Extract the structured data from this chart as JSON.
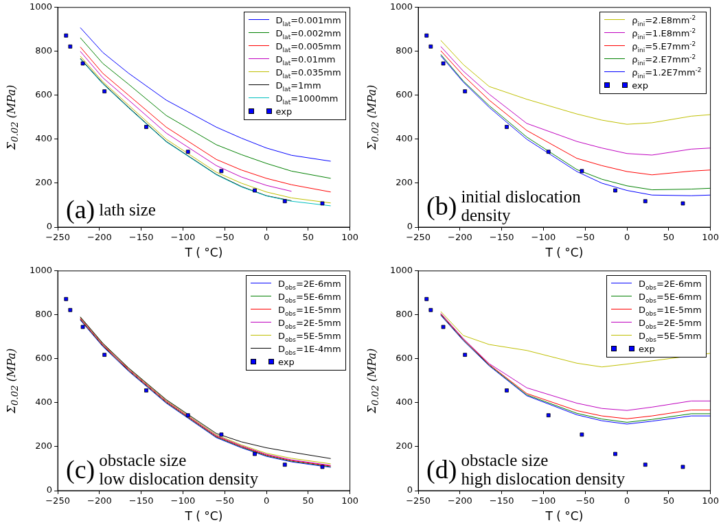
{
  "chart_data": [
    {
      "type": "line",
      "xlabel": "T ( °C)",
      "ylabel": "Σ$_{0.02}$ (MPa)",
      "xlim": [
        -250,
        100
      ],
      "ylim": [
        0,
        1000
      ],
      "xticks": [
        {
          "value": -250,
          "label": "−250"
        },
        {
          "value": -200,
          "label": "−200"
        },
        {
          "value": -150,
          "label": "−150"
        },
        {
          "value": -100,
          "label": "−100"
        },
        {
          "value": -50,
          "label": "−50"
        },
        0,
        50,
        100
      ],
      "yticks": [
        0,
        200,
        400,
        600,
        800,
        1000
      ],
      "legend": "top right",
      "annotations": [
        "(a)",
        "lath size"
      ],
      "x": [
        -223,
        -196,
        -165,
        -120,
        -60,
        -30,
        0,
        30,
        77
      ],
      "series": [
        {
          "name": "D$_{lat}$=0.001mm",
          "color": "#0000ff",
          "values": [
            908,
            795,
            700,
            578,
            455,
            405,
            360,
            327,
            300
          ]
        },
        {
          "name": "D$_{lat}$=0.002mm",
          "color": "#008000",
          "values": [
            862,
            745,
            650,
            508,
            375,
            330,
            290,
            255,
            222
          ]
        },
        {
          "name": "D$_{lat}$=0.005mm",
          "color": "#ff0000",
          "values": [
            820,
            700,
            600,
            455,
            308,
            260,
            222,
            193,
            160
          ]
        },
        {
          "name": "D$_{lat}$=0.01mm",
          "color": "#bf00bf",
          "x": [
            -223,
            -196,
            -165,
            -120,
            -60,
            -30,
            0,
            30
          ],
          "values": [
            800,
            680,
            578,
            428,
            280,
            228,
            190,
            163
          ]
        },
        {
          "name": "D$_{lat}$=0.035mm",
          "color": "#bfbf00",
          "values": [
            778,
            662,
            555,
            400,
            250,
            200,
            160,
            133,
            110
          ]
        },
        {
          "name": "D$_{lat}$=1mm",
          "color": "#000000",
          "values": [
            768,
            655,
            545,
            390,
            240,
            185,
            143,
            120,
            null
          ]
        },
        {
          "name": "D$_{lat}$=1000mm",
          "color": "#00bfbf",
          "values": [
            765,
            652,
            542,
            388,
            238,
            183,
            142,
            118,
            97
          ]
        },
        {
          "name": "exp",
          "type": "scatter",
          "marker": "square",
          "color": "#0000ff",
          "x": [
            -240,
            -235,
            -220,
            -194,
            -144,
            -94,
            -54,
            -14,
            22,
            67
          ],
          "values": [
            872,
            822,
            745,
            618,
            456,
            343,
            255,
            167,
            118,
            108
          ]
        }
      ]
    },
    {
      "type": "line",
      "xlabel": "T ( °C)",
      "ylabel": "Σ$_{0.02}$ (MPa)",
      "xlim": [
        -250,
        100
      ],
      "ylim": [
        0,
        1000
      ],
      "xticks": [
        {
          "value": -250,
          "label": "−250"
        },
        {
          "value": -200,
          "label": "−200"
        },
        {
          "value": -150,
          "label": "−150"
        },
        {
          "value": -100,
          "label": "−100"
        },
        {
          "value": -50,
          "label": "−50"
        },
        0,
        50,
        100
      ],
      "yticks": [
        0,
        200,
        400,
        600,
        800,
        1000
      ],
      "legend": "top right",
      "annotations": [
        "(b)",
        "initial dislocation\ndensity"
      ],
      "x": [
        -223,
        -196,
        -165,
        -120,
        -60,
        -30,
        0,
        30,
        77,
        100
      ],
      "series": [
        {
          "name": "ρ$_{ini}$=2.E8mm$^{-2}$",
          "color": "#bfbf00",
          "values": [
            850,
            740,
            640,
            582,
            515,
            487,
            468,
            475,
            505,
            512
          ]
        },
        {
          "name": "ρ$_{ini}$=1.E8mm$^{-2}$",
          "color": "#bf00bf",
          "values": [
            822,
            710,
            605,
            472,
            390,
            360,
            335,
            328,
            355,
            360
          ]
        },
        {
          "name": "ρ$_{ini}$=5.E7mm$^{-2}$",
          "color": "#ff0000",
          "values": [
            803,
            690,
            578,
            440,
            313,
            280,
            253,
            238,
            255,
            260
          ]
        },
        {
          "name": "ρ$_{ini}$=2.E7mm$^{-2}$",
          "color": "#008000",
          "values": [
            786,
            665,
            553,
            410,
            262,
            218,
            188,
            170,
            173,
            177
          ]
        },
        {
          "name": "ρ$_{ini}$=1.2E7mm$^{-2}$",
          "color": "#0000ff",
          "values": [
            780,
            660,
            545,
            400,
            253,
            200,
            167,
            146,
            143,
            146
          ]
        },
        {
          "name": "exp",
          "type": "scatter",
          "marker": "square",
          "color": "#0000ff",
          "x": [
            -240,
            -235,
            -220,
            -194,
            -144,
            -94,
            -54,
            -14,
            22,
            67
          ],
          "values": [
            872,
            822,
            745,
            618,
            456,
            343,
            255,
            167,
            118,
            108
          ]
        }
      ]
    },
    {
      "type": "line",
      "xlabel": "T ( °C)",
      "ylabel": "Σ$_{0.02}$ (MPa)",
      "xlim": [
        -250,
        100
      ],
      "ylim": [
        0,
        1000
      ],
      "xticks": [
        {
          "value": -250,
          "label": "−250"
        },
        {
          "value": -200,
          "label": "−200"
        },
        {
          "value": -150,
          "label": "−150"
        },
        {
          "value": -100,
          "label": "−100"
        },
        {
          "value": -50,
          "label": "−50"
        },
        0,
        50,
        100
      ],
      "yticks": [
        0,
        200,
        400,
        600,
        800,
        1000
      ],
      "legend": "top right",
      "annotations": [
        "(c)",
        "obstacle size\nlow dislocation density"
      ],
      "x": [
        -223,
        -196,
        -165,
        -120,
        -60,
        -30,
        0,
        30,
        77
      ],
      "series": [
        {
          "name": "D$_{obs}$=2E-6mm",
          "color": "#0000ff",
          "values": [
            776,
            656,
            543,
            398,
            241,
            195,
            156,
            131,
            106
          ]
        },
        {
          "name": "D$_{obs}$=5E-6mm",
          "color": "#008000",
          "values": [
            779,
            659,
            546,
            401,
            244,
            198,
            159,
            134,
            109
          ]
        },
        {
          "name": "D$_{obs}$=1E-5mm",
          "color": "#ff0000",
          "values": [
            782,
            662,
            549,
            404,
            247,
            201,
            162,
            137,
            112
          ]
        },
        {
          "name": "D$_{obs}$=2E-5mm",
          "color": "#bf00bf",
          "values": [
            785,
            665,
            552,
            407,
            250,
            204,
            165,
            140,
            115
          ]
        },
        {
          "name": "D$_{obs}$=5E-5mm",
          "color": "#bfbf00",
          "values": [
            788,
            668,
            555,
            410,
            254,
            208,
            170,
            147,
            122
          ]
        },
        {
          "name": "D$_{obs}$=1E-4mm",
          "color": "#000000",
          "values": [
            791,
            671,
            558,
            414,
            260,
            222,
            195,
            175,
            146
          ]
        },
        {
          "name": "exp",
          "type": "scatter",
          "marker": "square",
          "color": "#0000ff",
          "x": [
            -240,
            -235,
            -220,
            -194,
            -144,
            -94,
            -54,
            -14,
            22,
            67
          ],
          "values": [
            872,
            822,
            745,
            618,
            456,
            343,
            255,
            167,
            118,
            108
          ]
        }
      ]
    },
    {
      "type": "line",
      "xlabel": "T ( °C)",
      "ylabel": "Σ$_{0.02}$ (MPa)",
      "xlim": [
        -250,
        100
      ],
      "ylim": [
        0,
        1000
      ],
      "xticks": [
        {
          "value": -250,
          "label": "−250"
        },
        {
          "value": -200,
          "label": "−200"
        },
        {
          "value": -150,
          "label": "−150"
        },
        {
          "value": -100,
          "label": "−100"
        },
        {
          "value": -50,
          "label": "−50"
        },
        0,
        50,
        100
      ],
      "yticks": [
        0,
        200,
        400,
        600,
        800,
        1000
      ],
      "legend": "top right",
      "annotations": [
        "(d)",
        "obstacle size\nhigh dislocation density"
      ],
      "x": [
        -223,
        -196,
        -165,
        -120,
        -60,
        -30,
        0,
        30,
        77,
        100
      ],
      "series": [
        {
          "name": "D$_{obs}$=2E-6mm",
          "color": "#0000ff",
          "values": [
            798,
            683,
            568,
            432,
            345,
            318,
            303,
            316,
            340,
            340
          ]
        },
        {
          "name": "D$_{obs}$=5E-6mm",
          "color": "#008000",
          "values": [
            801,
            686,
            571,
            436,
            352,
            326,
            311,
            324,
            350,
            350
          ]
        },
        {
          "name": "D$_{obs}$=1E-5mm",
          "color": "#ff0000",
          "values": [
            804,
            689,
            574,
            442,
            364,
            340,
            327,
            340,
            367,
            367
          ]
        },
        {
          "name": "D$_{obs}$=2E-5mm",
          "color": "#bf00bf",
          "values": [
            807,
            692,
            578,
            468,
            398,
            374,
            365,
            380,
            408,
            408
          ]
        },
        {
          "name": "D$_{obs}$=5E-5mm",
          "color": "#bfbf00",
          "x": [
            -223,
            -196,
            -165,
            -120,
            -60,
            -30,
            0,
            100
          ],
          "values": [
            815,
            706,
            665,
            638,
            580,
            563,
            576,
            625
          ]
        },
        {
          "name": "exp",
          "type": "scatter",
          "marker": "square",
          "color": "#0000ff",
          "x": [
            -240,
            -235,
            -220,
            -194,
            -144,
            -94,
            -54,
            -14,
            22,
            67
          ],
          "values": [
            872,
            822,
            745,
            618,
            456,
            343,
            255,
            167,
            118,
            108
          ]
        }
      ]
    }
  ]
}
